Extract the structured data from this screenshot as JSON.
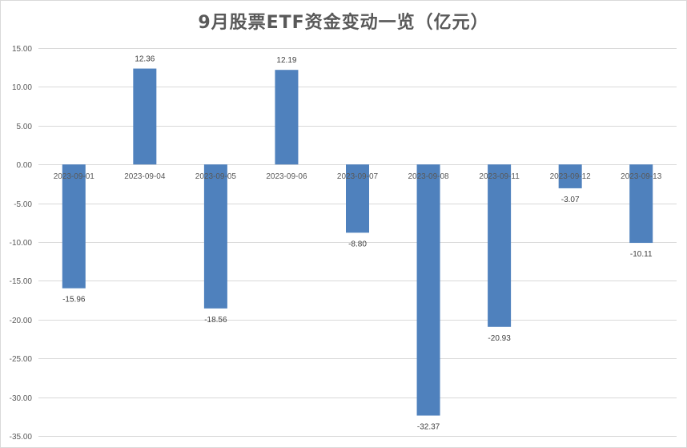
{
  "chart_data": {
    "type": "bar",
    "title": "9月股票ETF资金变动一览（亿元）",
    "xlabel": "",
    "ylabel": "",
    "categories": [
      "2023-09-01",
      "2023-09-04",
      "2023-09-05",
      "2023-09-06",
      "2023-09-07",
      "2023-09-08",
      "2023-09-11",
      "2023-09-12",
      "2023-09-13"
    ],
    "values": [
      -15.96,
      12.36,
      -18.56,
      12.19,
      -8.8,
      -32.37,
      -20.93,
      -3.07,
      -10.11
    ],
    "value_labels": [
      "-15.96",
      "12.36",
      "-18.56",
      "12.19",
      "-8.80",
      "-32.37",
      "-20.93",
      "-3.07",
      "-10.11"
    ],
    "ylim": [
      -35,
      15
    ],
    "yticks": [
      "15.00",
      "10.00",
      "5.00",
      "0.00",
      "-5.00",
      "-10.00",
      "-15.00",
      "-20.00",
      "-25.00",
      "-30.00",
      "-35.00"
    ],
    "ytick_values": [
      15,
      10,
      5,
      0,
      -5,
      -10,
      -15,
      -20,
      -25,
      -30,
      -35
    ],
    "grid": true,
    "legend": "none",
    "bar_color": "#4f81bd"
  }
}
